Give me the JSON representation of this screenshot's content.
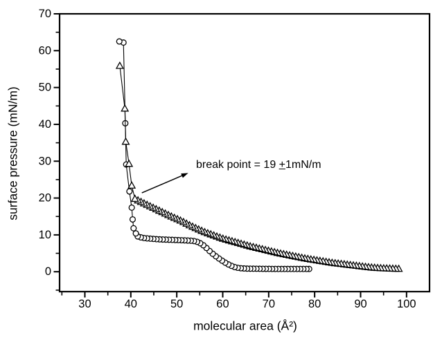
{
  "figure": {
    "background": "#ffffff",
    "foreground": "#000000"
  },
  "chart_data": {
    "type": "line",
    "title": "",
    "xlabel": "molecular area (Å²)",
    "ylabel": "surface pressure (mN/m)",
    "xlim": [
      24.5,
      105
    ],
    "ylim": [
      -5.4,
      70
    ],
    "x_major_ticks": [
      30,
      40,
      50,
      60,
      70,
      80,
      90,
      100
    ],
    "x_minor_ticks": [
      25,
      35,
      45,
      55,
      65,
      75,
      85,
      95
    ],
    "y_major_ticks": [
      0,
      10,
      20,
      30,
      40,
      50,
      60,
      70
    ],
    "y_minor_ticks": [
      -5,
      5,
      15,
      25,
      35,
      45,
      55,
      65
    ],
    "grid": false,
    "legend": "none",
    "series": [
      {
        "name": "circle-isotherm",
        "marker": "circle",
        "points_steep": [
          [
            37.5,
            62.5
          ],
          [
            38.4,
            62.2
          ],
          [
            38.8,
            40.3
          ],
          [
            39.0,
            29.1
          ],
          [
            39.7,
            21.8
          ],
          [
            40.2,
            17.4
          ],
          [
            40.4,
            14.2
          ],
          [
            40.6,
            11.8
          ],
          [
            41.1,
            10.4
          ]
        ],
        "points_dense": [
          [
            41.5,
            9.6
          ],
          [
            42.5,
            9.2
          ],
          [
            44,
            9.0
          ],
          [
            46,
            8.8
          ],
          [
            48,
            8.7
          ],
          [
            50,
            8.6
          ],
          [
            52,
            8.5
          ],
          [
            53.5,
            8.4
          ],
          [
            54.5,
            8.1
          ],
          [
            55.5,
            7.5
          ],
          [
            56.5,
            6.4
          ],
          [
            57.5,
            5.2
          ],
          [
            58.5,
            4.2
          ],
          [
            59.5,
            3.3
          ],
          [
            60.5,
            2.5
          ],
          [
            61.5,
            1.8
          ],
          [
            62.5,
            1.3
          ],
          [
            63.5,
            1.0
          ],
          [
            65,
            0.85
          ],
          [
            68,
            0.8
          ],
          [
            72,
            0.75
          ],
          [
            76,
            0.75
          ],
          [
            78.8,
            0.75
          ]
        ],
        "marker_step": 0.68
      },
      {
        "name": "triangle-isotherm",
        "marker": "triangle-up",
        "points_steep": [
          [
            37.6,
            55.9
          ],
          [
            38.7,
            44.3
          ],
          [
            38.9,
            35.3
          ],
          [
            39.6,
            29.3
          ],
          [
            40.2,
            23.4
          ]
        ],
        "points_dense": [
          [
            40.9,
            19.8
          ],
          [
            42,
            19.1
          ],
          [
            43.5,
            18.2
          ],
          [
            45,
            17.3
          ],
          [
            47,
            16.1
          ],
          [
            49,
            14.9
          ],
          [
            51,
            13.8
          ],
          [
            53,
            12.5
          ],
          [
            54.4,
            11.7
          ],
          [
            56,
            10.8
          ],
          [
            58,
            9.9
          ],
          [
            60,
            9.0
          ],
          [
            62,
            8.3
          ],
          [
            64,
            7.6
          ],
          [
            66,
            6.9
          ],
          [
            68,
            6.3
          ],
          [
            70,
            5.7
          ],
          [
            72,
            5.1
          ],
          [
            74,
            4.6
          ],
          [
            76,
            4.1
          ],
          [
            78,
            3.6
          ],
          [
            80,
            3.2
          ],
          [
            82,
            2.8
          ],
          [
            84,
            2.4
          ],
          [
            86,
            2.1
          ],
          [
            88,
            1.8
          ],
          [
            90,
            1.5
          ],
          [
            92,
            1.2
          ],
          [
            94,
            1.0
          ],
          [
            96,
            0.9
          ],
          [
            98.3,
            0.8
          ]
        ],
        "marker_step": 0.66
      }
    ],
    "annotation": {
      "text": "break point = 19 ±1mN/m",
      "text_pos": {
        "x": 54.2,
        "y": 28.9
      },
      "arrow": {
        "tail": {
          "x": 42.4,
          "y": 21.4
        },
        "head": {
          "x": 52.5,
          "y": 26.8
        }
      }
    }
  }
}
